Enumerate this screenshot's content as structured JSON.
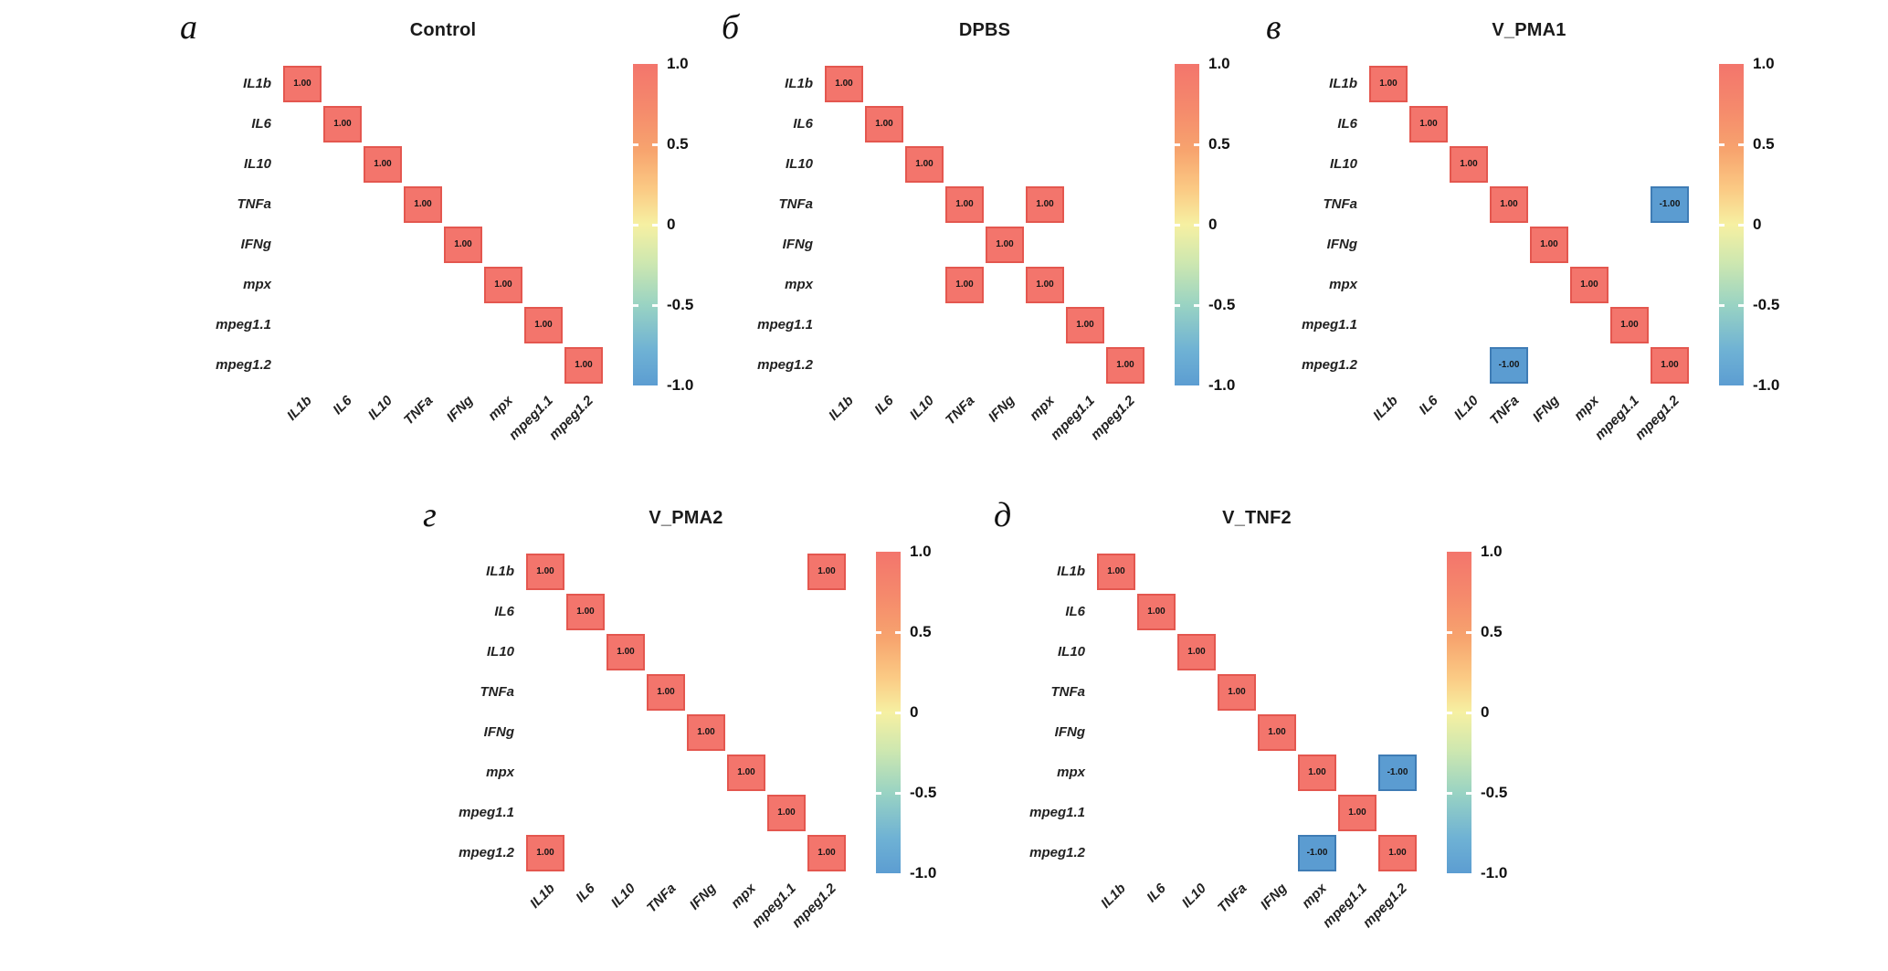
{
  "colorbar_ticks": [
    "1.0",
    "0.5",
    "0",
    "-0.5",
    "-1.0"
  ],
  "colors": {
    "positive_cell": "#f3756c",
    "positive_border": "#e4574f",
    "negative_cell": "#5b9cd1",
    "negative_border": "#3f7cb5",
    "colorbar_top": "#f3756c",
    "colorbar_middle": "#f6f0a2",
    "colorbar_bottom": "#5c9dd2"
  },
  "chart_data": [
    {
      "type": "heatmap",
      "letter": "а",
      "title": "Control",
      "categories": [
        "IL1b",
        "IL6",
        "IL10",
        "TNFa",
        "IFNg",
        "mpx",
        "mpeg1.1",
        "mpeg1.2"
      ],
      "value_range": [
        -1.0,
        1.0
      ],
      "cells": [
        [
          0,
          0,
          1
        ],
        [
          1,
          1,
          1
        ],
        [
          2,
          2,
          1
        ],
        [
          3,
          3,
          1
        ],
        [
          4,
          4,
          1
        ],
        [
          5,
          5,
          1
        ],
        [
          6,
          6,
          1
        ],
        [
          7,
          7,
          1
        ]
      ]
    },
    {
      "type": "heatmap",
      "letter": "б",
      "title": "DPBS",
      "categories": [
        "IL1b",
        "IL6",
        "IL10",
        "TNFa",
        "IFNg",
        "mpx",
        "mpeg1.1",
        "mpeg1.2"
      ],
      "value_range": [
        -1.0,
        1.0
      ],
      "cells": [
        [
          0,
          0,
          1
        ],
        [
          1,
          1,
          1
        ],
        [
          2,
          2,
          1
        ],
        [
          3,
          3,
          1
        ],
        [
          3,
          5,
          1
        ],
        [
          4,
          4,
          1
        ],
        [
          5,
          3,
          1
        ],
        [
          5,
          5,
          1
        ],
        [
          6,
          6,
          1
        ],
        [
          7,
          7,
          1
        ]
      ]
    },
    {
      "type": "heatmap",
      "letter": "в",
      "title": "V_PMA1",
      "categories": [
        "IL1b",
        "IL6",
        "IL10",
        "TNFa",
        "IFNg",
        "mpx",
        "mpeg1.1",
        "mpeg1.2"
      ],
      "value_range": [
        -1.0,
        1.0
      ],
      "cells": [
        [
          0,
          0,
          1
        ],
        [
          1,
          1,
          1
        ],
        [
          2,
          2,
          1
        ],
        [
          3,
          3,
          1
        ],
        [
          3,
          7,
          -1
        ],
        [
          4,
          4,
          1
        ],
        [
          5,
          5,
          1
        ],
        [
          6,
          6,
          1
        ],
        [
          7,
          3,
          -1
        ],
        [
          7,
          7,
          1
        ]
      ]
    },
    {
      "type": "heatmap",
      "letter": "г",
      "title": "V_PMA2",
      "categories": [
        "IL1b",
        "IL6",
        "IL10",
        "TNFa",
        "IFNg",
        "mpx",
        "mpeg1.1",
        "mpeg1.2"
      ],
      "value_range": [
        -1.0,
        1.0
      ],
      "cells": [
        [
          0,
          0,
          1
        ],
        [
          0,
          7,
          1
        ],
        [
          1,
          1,
          1
        ],
        [
          2,
          2,
          1
        ],
        [
          3,
          3,
          1
        ],
        [
          4,
          4,
          1
        ],
        [
          5,
          5,
          1
        ],
        [
          6,
          6,
          1
        ],
        [
          7,
          0,
          1
        ],
        [
          7,
          7,
          1
        ]
      ]
    },
    {
      "type": "heatmap",
      "letter": "д",
      "title": "V_TNF2",
      "categories": [
        "IL1b",
        "IL6",
        "IL10",
        "TNFa",
        "IFNg",
        "mpx",
        "mpeg1.1",
        "mpeg1.2"
      ],
      "value_range": [
        -1.0,
        1.0
      ],
      "cells": [
        [
          0,
          0,
          1
        ],
        [
          1,
          1,
          1
        ],
        [
          2,
          2,
          1
        ],
        [
          3,
          3,
          1
        ],
        [
          4,
          4,
          1
        ],
        [
          5,
          5,
          1
        ],
        [
          5,
          7,
          -1
        ],
        [
          6,
          6,
          1
        ],
        [
          7,
          5,
          -1
        ],
        [
          7,
          7,
          1
        ]
      ]
    }
  ]
}
